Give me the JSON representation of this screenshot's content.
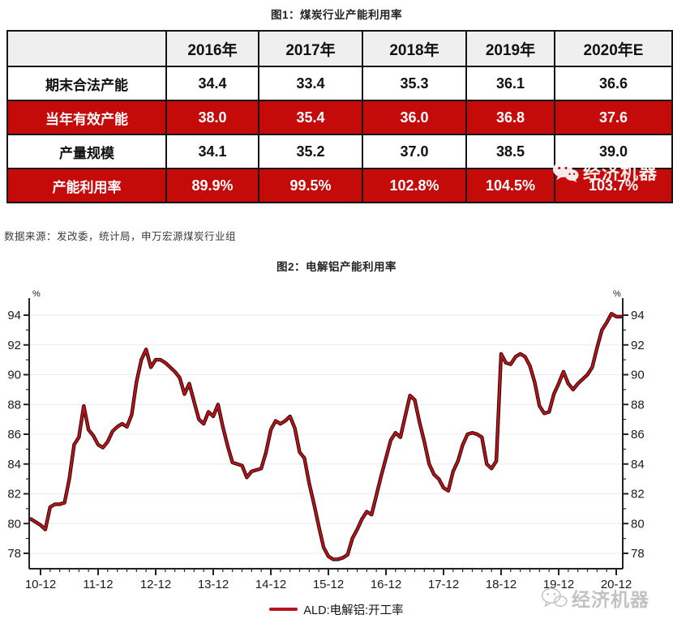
{
  "figure1": {
    "title": "图1：煤炭行业产能利用率"
  },
  "table": {
    "columns": [
      "",
      "2016年",
      "2017年",
      "2018年",
      "2019年",
      "2020年E"
    ],
    "rows": [
      {
        "label": "期末合法产能",
        "values": [
          "34.4",
          "33.4",
          "35.3",
          "36.1",
          "36.6"
        ],
        "highlight": false
      },
      {
        "label": "当年有效产能",
        "values": [
          "38.0",
          "35.4",
          "36.0",
          "36.8",
          "37.6"
        ],
        "highlight": true
      },
      {
        "label": "产量规模",
        "values": [
          "34.1",
          "35.2",
          "37.0",
          "38.5",
          "39.0"
        ],
        "highlight": false
      },
      {
        "label": "产能利用率",
        "values": [
          "89.9%",
          "99.5%",
          "102.8%",
          "104.5%",
          "103.7%"
        ],
        "highlight": true
      }
    ],
    "highlight_color": "#c50a0a"
  },
  "source_note": "数据来源：发改委，统计局，申万宏源煤炭行业组",
  "figure2": {
    "title": "图2：电解铝产能利用率"
  },
  "chart_data": {
    "type": "line",
    "title": "图2：电解铝产能利用率",
    "y_unit": "%",
    "ylim": [
      77,
      95
    ],
    "y_ticks": [
      78,
      80,
      82,
      84,
      86,
      88,
      90,
      92,
      94
    ],
    "grid": true,
    "legend_position": "bottom",
    "x_tick_labels": [
      "10-12",
      "11-12",
      "12-12",
      "13-12",
      "14-12",
      "15-12",
      "16-12",
      "17-12",
      "18-12",
      "19-12",
      "20-12"
    ],
    "series": [
      {
        "name": "ALD:电解铝:开工率",
        "color": "#b5161c",
        "start": "2010-10",
        "freq": "monthly",
        "values": [
          80.3,
          80.1,
          79.9,
          79.6,
          81.1,
          81.3,
          81.3,
          81.4,
          83.0,
          85.3,
          85.8,
          87.9,
          86.3,
          85.9,
          85.3,
          85.1,
          85.5,
          86.2,
          86.5,
          86.7,
          86.5,
          87.3,
          89.5,
          91.0,
          91.7,
          90.5,
          91.0,
          91.0,
          90.8,
          90.5,
          90.2,
          89.8,
          88.7,
          89.4,
          88.2,
          87.0,
          86.7,
          87.5,
          87.2,
          88.0,
          86.5,
          85.2,
          84.1,
          84.0,
          83.9,
          83.1,
          83.5,
          83.6,
          83.7,
          84.8,
          86.3,
          86.9,
          86.7,
          86.9,
          87.2,
          86.4,
          84.8,
          84.4,
          82.7,
          81.3,
          79.8,
          78.4,
          77.8,
          77.6,
          77.6,
          77.7,
          77.9,
          79.0,
          79.6,
          80.3,
          80.8,
          80.6,
          81.9,
          83.2,
          84.4,
          85.6,
          86.1,
          85.8,
          87.2,
          88.6,
          88.3,
          86.8,
          85.5,
          84.0,
          83.3,
          83.0,
          82.4,
          82.2,
          83.5,
          84.2,
          85.3,
          86.0,
          86.1,
          86.0,
          85.8,
          84.0,
          83.7,
          84.2,
          91.4,
          90.8,
          90.7,
          91.2,
          91.4,
          91.2,
          90.6,
          89.5,
          87.9,
          87.4,
          87.5,
          88.7,
          89.4,
          90.2,
          89.4,
          89.0,
          89.4,
          89.7,
          90.0,
          90.5,
          91.8,
          93.0,
          93.5,
          94.1,
          93.9,
          93.9
        ]
      }
    ]
  },
  "watermark": {
    "text": "经济机器",
    "icon": "wechat-icon"
  }
}
